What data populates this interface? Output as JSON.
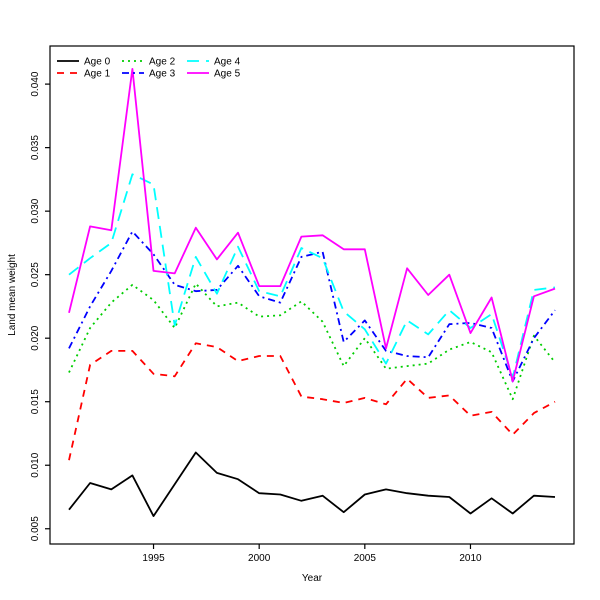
{
  "chart_data": {
    "type": "line",
    "title": "",
    "xlabel": "Year",
    "ylabel": "Land mean weight",
    "grid": false,
    "legend_position": "top-left",
    "legend_columns": 3,
    "xlim": [
      1990.1,
      2014.9
    ],
    "ylim": [
      0.0038,
      0.043
    ],
    "xticks": {
      "values": [
        1995,
        2000,
        2005,
        2010
      ],
      "labels": [
        "1995",
        "2000",
        "2005",
        "2010"
      ]
    },
    "yticks": {
      "values": [
        0.005,
        0.01,
        0.015,
        0.02,
        0.025,
        0.03,
        0.035,
        0.04
      ],
      "labels": [
        "0.005",
        "0.010",
        "0.015",
        "0.020",
        "0.025",
        "0.030",
        "0.035",
        "0.040"
      ]
    },
    "x": [
      1991,
      1992,
      1993,
      1994,
      1995,
      1996,
      1997,
      1998,
      1999,
      2000,
      2001,
      2002,
      2003,
      2004,
      2005,
      2006,
      2007,
      2008,
      2009,
      2010,
      2011,
      2012,
      2013,
      2014
    ],
    "series": [
      {
        "id": "age-0",
        "name": "Age 0",
        "color": "#000000",
        "dash": "solid",
        "values": [
          0.0065,
          0.0086,
          0.0081,
          0.0092,
          0.006,
          0.0085,
          0.011,
          0.0094,
          0.0089,
          0.0078,
          0.0077,
          0.0072,
          0.0076,
          0.0063,
          0.0077,
          0.0081,
          0.0078,
          0.0076,
          0.0075,
          0.0062,
          0.0074,
          0.0062,
          0.0076,
          0.0075
        ]
      },
      {
        "id": "age-1",
        "name": "Age 1",
        "color": "#ff0000",
        "dash": "dashed",
        "values": [
          0.0104,
          0.0179,
          0.019,
          0.019,
          0.0172,
          0.017,
          0.0196,
          0.0193,
          0.0182,
          0.0186,
          0.0186,
          0.0154,
          0.0152,
          0.0149,
          0.0153,
          0.0148,
          0.0168,
          0.0153,
          0.0155,
          0.0139,
          0.0142,
          0.0124,
          0.0141,
          0.015
        ]
      },
      {
        "id": "age-2",
        "name": "Age 2",
        "color": "#00cd00",
        "dash": "dotted",
        "values": [
          0.0173,
          0.0208,
          0.0228,
          0.0242,
          0.023,
          0.0208,
          0.0243,
          0.0225,
          0.0228,
          0.0217,
          0.0218,
          0.0229,
          0.0213,
          0.0178,
          0.02,
          0.0176,
          0.0178,
          0.018,
          0.0191,
          0.0197,
          0.0189,
          0.0152,
          0.0202,
          0.0181
        ]
      },
      {
        "id": "age-3",
        "name": "Age 3",
        "color": "#0000ff",
        "dash": "dashdot",
        "values": [
          0.0192,
          0.0225,
          0.0253,
          0.0284,
          0.0266,
          0.0242,
          0.0237,
          0.0238,
          0.0257,
          0.0233,
          0.0228,
          0.0264,
          0.0268,
          0.0197,
          0.0214,
          0.019,
          0.0186,
          0.0185,
          0.0211,
          0.0212,
          0.0208,
          0.0166,
          0.02,
          0.0222
        ]
      },
      {
        "id": "age-4",
        "name": "Age 4",
        "color": "#00ffff",
        "dash": "longdash",
        "values": [
          0.025,
          0.0263,
          0.0275,
          0.0329,
          0.0321,
          0.021,
          0.0264,
          0.0235,
          0.0272,
          0.0237,
          0.0233,
          0.0271,
          0.0263,
          0.0221,
          0.0207,
          0.018,
          0.0214,
          0.0203,
          0.0222,
          0.0208,
          0.0219,
          0.0169,
          0.0238,
          0.024
        ]
      },
      {
        "id": "age-5",
        "name": "Age 5",
        "color": "#ff00ff",
        "dash": "solid",
        "values": [
          0.022,
          0.0288,
          0.0285,
          0.0412,
          0.0253,
          0.0251,
          0.0287,
          0.0262,
          0.0283,
          0.0241,
          0.0241,
          0.028,
          0.0281,
          0.027,
          0.027,
          0.0192,
          0.0255,
          0.0234,
          0.025,
          0.0204,
          0.0232,
          0.0166,
          0.0233,
          0.0239
        ]
      }
    ],
    "legend": [
      "Age 0",
      "Age 1",
      "Age 2",
      "Age 3",
      "Age 4",
      "Age 5"
    ]
  }
}
